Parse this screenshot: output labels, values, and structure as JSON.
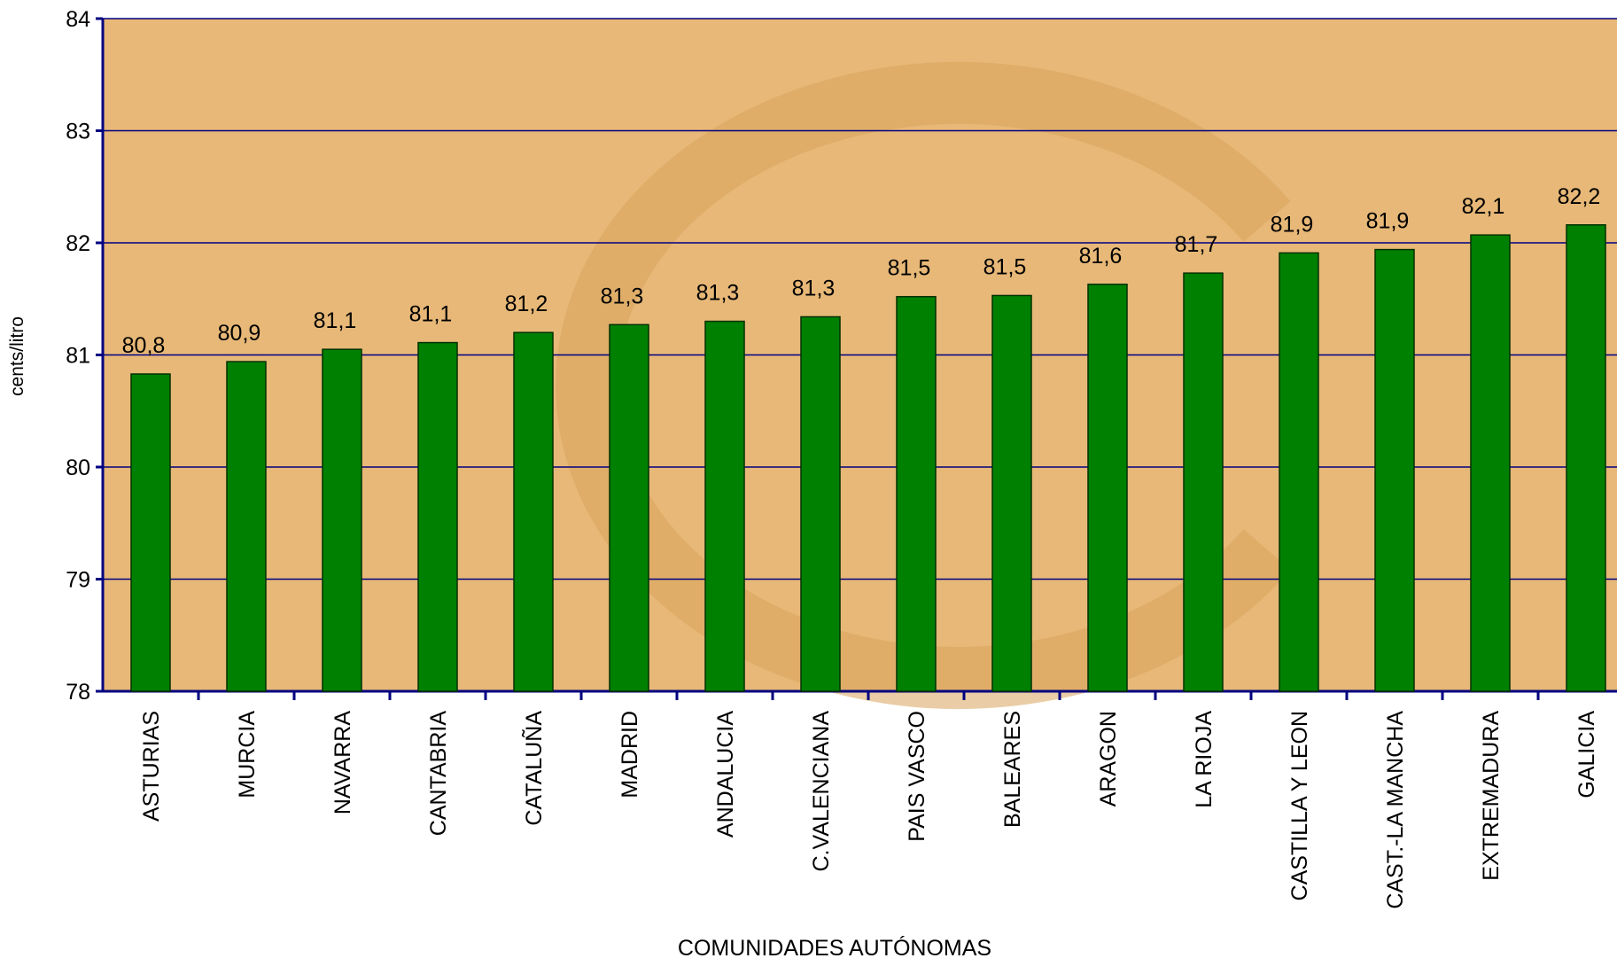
{
  "chart_data": {
    "type": "bar",
    "x_label": "COMUNIDADES AUTÓNOMAS",
    "y_label": "cents/litro",
    "categories": [
      "ASTURIAS",
      "MURCIA",
      "NAVARRA",
      "CANTABRIA",
      "CATALUÑA",
      "MADRID",
      "ANDALUCIA",
      "C.VALENCIANA",
      "PAIS VASCO",
      "BALEARES",
      "ARAGON",
      "LA RIOJA",
      "CASTILLA Y LEON",
      "CAST.-LA MANCHA",
      "EXTREMADURA",
      "GALICIA"
    ],
    "values": [
      80.83,
      80.94,
      81.05,
      81.11,
      81.2,
      81.27,
      81.3,
      81.34,
      81.52,
      81.53,
      81.63,
      81.73,
      81.91,
      81.94,
      82.07,
      82.16
    ],
    "value_labels": [
      "80,8",
      "80,9",
      "81,1",
      "81,1",
      "81,2",
      "81,3",
      "81,3",
      "81,3",
      "81,5",
      "81,5",
      "81,6",
      "81,7",
      "81,9",
      "81,9",
      "82,1",
      "82,2"
    ],
    "color": "#008000",
    "ylim": [
      78,
      84
    ],
    "yticks": [
      78,
      79,
      80,
      81,
      82,
      83,
      84
    ],
    "grid": true
  }
}
